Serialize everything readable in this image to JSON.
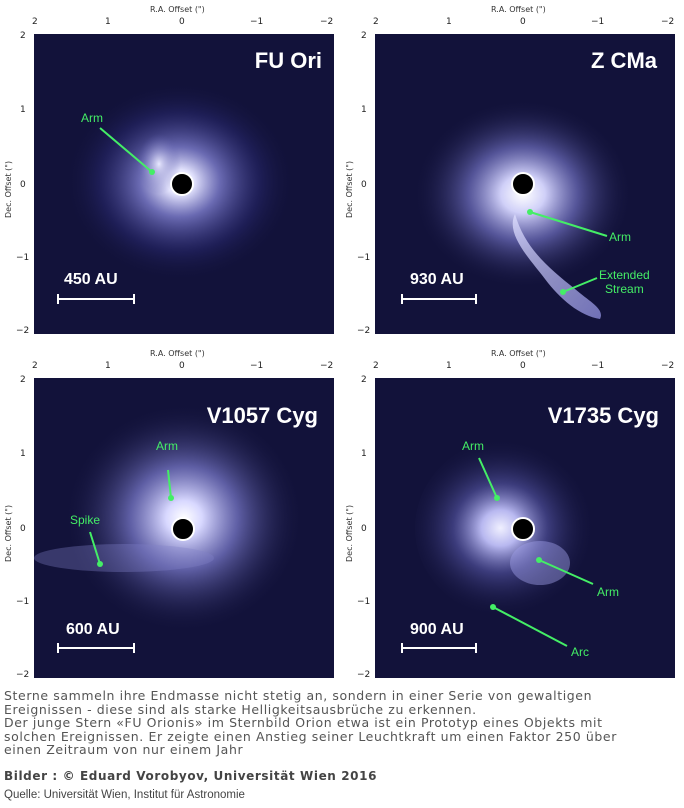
{
  "axis": {
    "x_label": "R.A. Offset (\")",
    "y_label": "Dec. Offset (\")",
    "x_ticks": [
      "2",
      "1",
      "0",
      "−1",
      "−2"
    ],
    "y_ticks": [
      "2",
      "1",
      "0",
      "−1",
      "−2"
    ]
  },
  "panels": [
    {
      "name": "FU Ori",
      "scale": "450 AU",
      "annotations": [
        {
          "text": "Arm"
        }
      ]
    },
    {
      "name": "Z CMa",
      "scale": "930 AU",
      "annotations": [
        {
          "text": "Arm"
        },
        {
          "text": "Extended\nStream"
        }
      ]
    },
    {
      "name": "V1057 Cyg",
      "scale": "600 AU",
      "annotations": [
        {
          "text": "Arm"
        },
        {
          "text": "Spike"
        }
      ]
    },
    {
      "name": "V1735 Cyg",
      "scale": "900 AU",
      "annotations": [
        {
          "text": "Arm"
        },
        {
          "text": "Arm"
        },
        {
          "text": "Arc"
        }
      ]
    }
  ],
  "caption": {
    "line1": "Sterne sammeln ihre Endmasse nicht stetig an, sondern in einer Serie von gewaltigen",
    "line2": "Ereignissen - diese sind als starke Helligkeitsausbrüche zu erkennen.",
    "line3": "Der junge Stern «FU Orionis» im Sternbild Orion etwa ist ein Prototyp eines Objekts mit",
    "line4": "solchen Ereignissen. Er zeigte einen Anstieg seiner Leuchtkraft um einen Faktor 250 über",
    "line5": "einen Zeitraum von nur einem Jahr"
  },
  "credit": "Bilder : © Eduard Vorobyov, Universität Wien 2016",
  "source": "Quelle: Universität Wien, Institut für Astronomie",
  "colors": {
    "annotation": "#44ee66",
    "sky": "#12123a",
    "nebula": "#c8c8ff"
  }
}
